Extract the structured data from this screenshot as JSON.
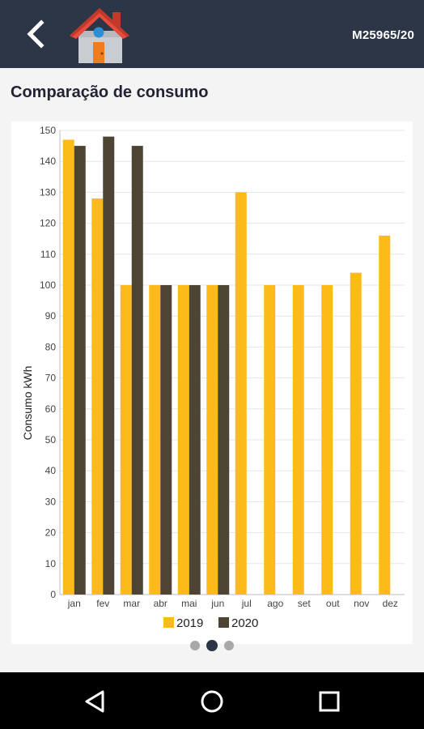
{
  "header": {
    "meter_id": "M25965/20",
    "back_icon": "chevron-left-icon",
    "logo_icon": "house-icon"
  },
  "section": {
    "title": "Comparação de consumo"
  },
  "pager": {
    "count": 3,
    "active": 1
  },
  "nav": {
    "back_icon": "triangle-back-icon",
    "home_icon": "circle-home-icon",
    "recents_icon": "square-recents-icon"
  },
  "colors": {
    "header_bg": "#2d3647",
    "series_2019": "#fdbb1a",
    "series_2020": "#4e4433"
  },
  "chart_data": {
    "type": "bar",
    "title": "",
    "xlabel": "",
    "ylabel": "Consumo kWh",
    "ylim": [
      0,
      150
    ],
    "yticks": [
      0,
      10,
      20,
      30,
      40,
      50,
      60,
      70,
      80,
      90,
      100,
      110,
      120,
      130,
      140,
      150
    ],
    "grid": true,
    "legend": "bottom",
    "categories": [
      "jan",
      "fev",
      "mar",
      "abr",
      "mai",
      "jun",
      "jul",
      "ago",
      "set",
      "out",
      "nov",
      "dez"
    ],
    "series": [
      {
        "name": "2019",
        "color": "#fdbb1a",
        "values": [
          147,
          128,
          100,
          100,
          100,
          100,
          130,
          100,
          100,
          100,
          104,
          116
        ]
      },
      {
        "name": "2020",
        "color": "#4e4433",
        "values": [
          145,
          148,
          145,
          100,
          100,
          100,
          null,
          null,
          null,
          null,
          null,
          null
        ]
      }
    ]
  }
}
